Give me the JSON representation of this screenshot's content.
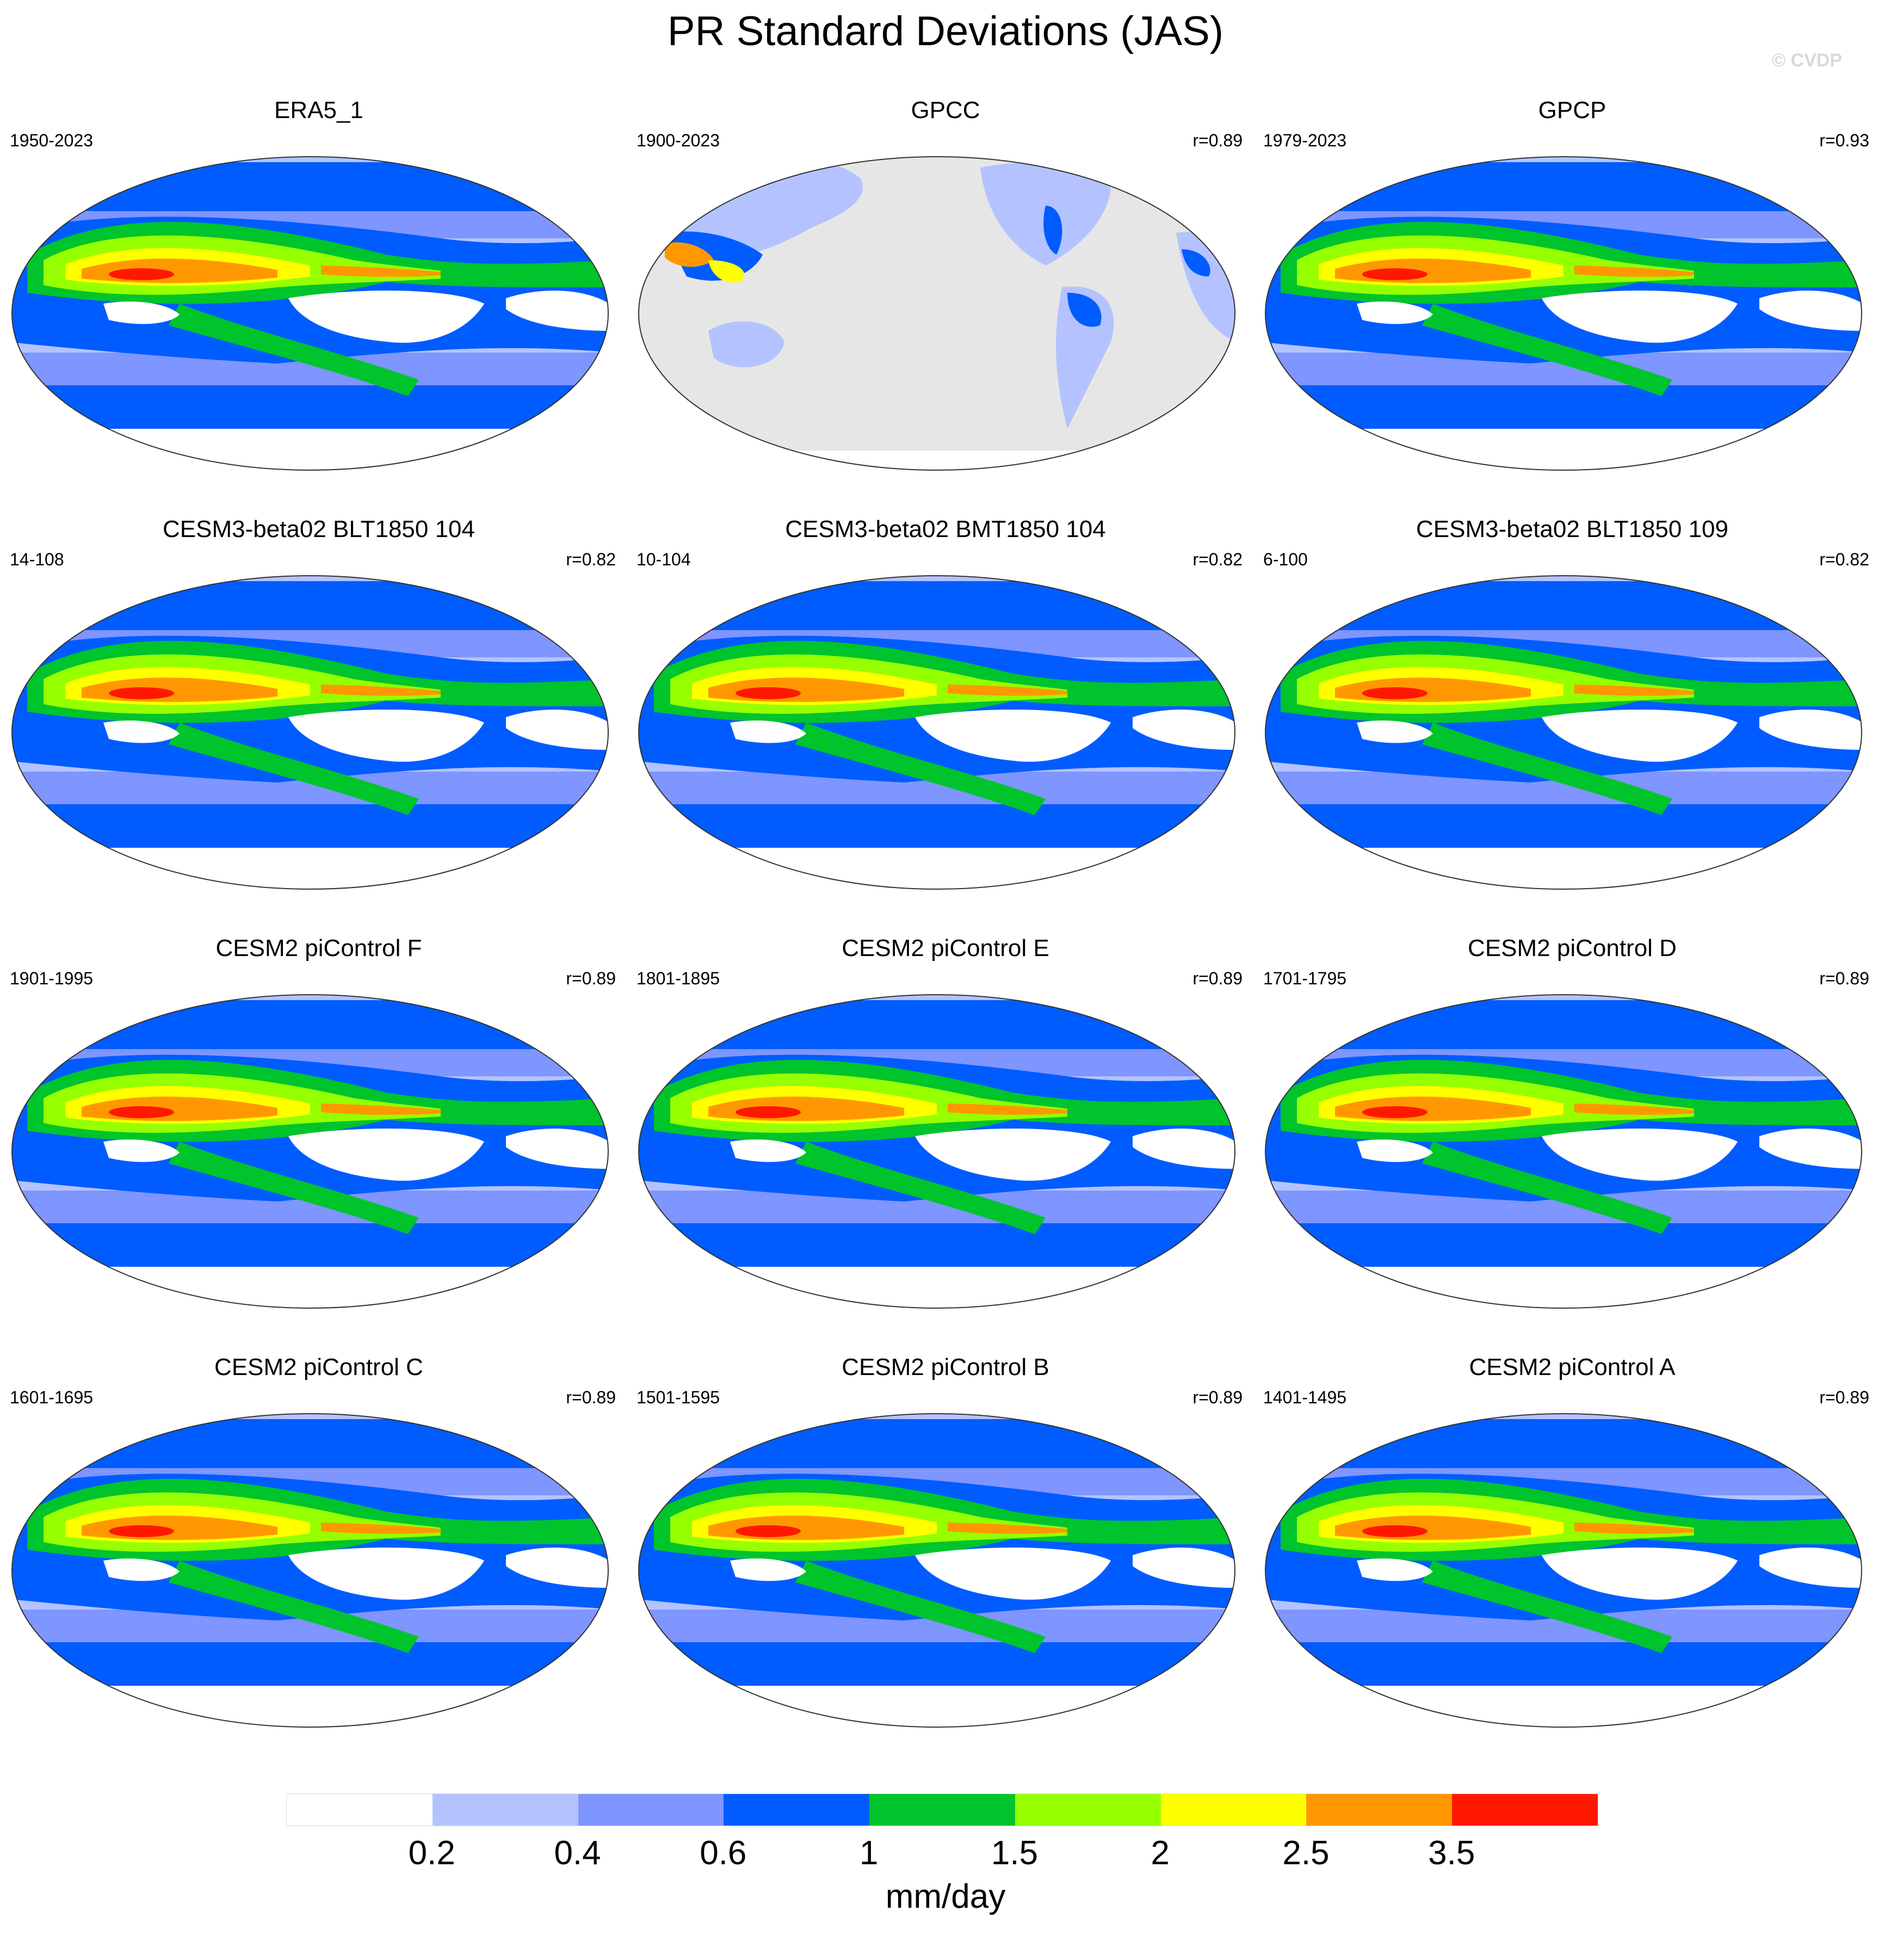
{
  "title": "PR Standard Deviations (JAS)",
  "watermark": "© CVDP",
  "panels": [
    {
      "title": "ERA5_1",
      "years": "1950-2023",
      "r": "",
      "map": "pacific-centered"
    },
    {
      "title": "GPCC",
      "years": "1900-2023",
      "r": "r=0.89",
      "map": "land-only"
    },
    {
      "title": "GPCP",
      "years": "1979-2023",
      "r": "r=0.93",
      "map": "pacific-centered"
    },
    {
      "title": "CESM3-beta02 BLT1850 104",
      "years": "14-108",
      "r": "r=0.82",
      "map": "pacific-centered"
    },
    {
      "title": "CESM3-beta02 BMT1850 104",
      "years": "10-104",
      "r": "r=0.82",
      "map": "pacific-centered"
    },
    {
      "title": "CESM3-beta02 BLT1850 109",
      "years": "6-100",
      "r": "r=0.82",
      "map": "pacific-centered"
    },
    {
      "title": "CESM2 piControl F",
      "years": "1901-1995",
      "r": "r=0.89",
      "map": "pacific-centered"
    },
    {
      "title": "CESM2 piControl E",
      "years": "1801-1895",
      "r": "r=0.89",
      "map": "pacific-centered"
    },
    {
      "title": "CESM2 piControl D",
      "years": "1701-1795",
      "r": "r=0.89",
      "map": "pacific-centered"
    },
    {
      "title": "CESM2 piControl C",
      "years": "1601-1695",
      "r": "r=0.89",
      "map": "pacific-centered"
    },
    {
      "title": "CESM2 piControl B",
      "years": "1501-1595",
      "r": "r=0.89",
      "map": "pacific-centered"
    },
    {
      "title": "CESM2 piControl A",
      "years": "1401-1495",
      "r": "r=0.89",
      "map": "pacific-centered"
    }
  ],
  "colorbar": {
    "colors": [
      "#ffffff",
      "#b4c3ff",
      "#7f95ff",
      "#005cff",
      "#00c42c",
      "#96ff00",
      "#ffff00",
      "#ff9800",
      "#ff1800"
    ],
    "labels": [
      "0.2",
      "0.4",
      "0.6",
      "1",
      "1.5",
      "2",
      "2.5",
      "3.5"
    ],
    "units": "mm/day"
  },
  "map_colors": {
    "ocean_low": "#b4c3ff",
    "ocean_mid": "#7f95ff",
    "ocean_base": "#005cff",
    "itcz": "#00c42c",
    "high1": "#96ff00",
    "high2": "#ffff00",
    "high3": "#ff9800",
    "high4": "#ff1800",
    "missing": "#e6e6e6",
    "land_dry": "#ffffff"
  }
}
